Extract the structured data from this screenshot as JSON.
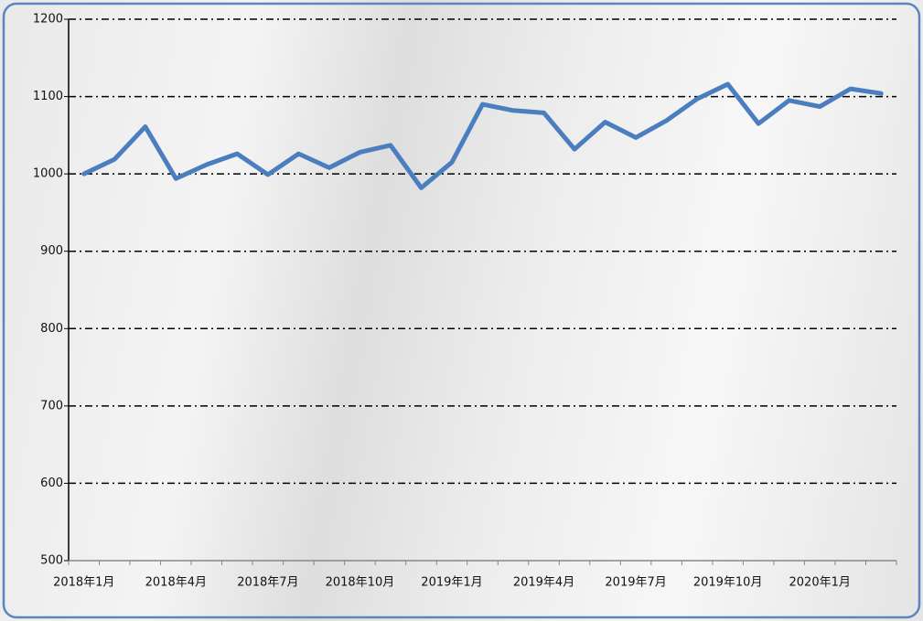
{
  "chart_data": {
    "type": "line",
    "categories": [
      "2018年1月",
      null,
      null,
      "2018年4月",
      null,
      null,
      "2018年7月",
      null,
      null,
      "2018年10月",
      null,
      null,
      "2019年1月",
      null,
      null,
      "2019年4月",
      null,
      null,
      "2019年7月",
      null,
      null,
      "2019年10月",
      null,
      null,
      "2020年1月",
      null,
      null
    ],
    "series": [
      {
        "color": "#4a7ebf",
        "values": [
          1000,
          1019,
          1061,
          994,
          1012,
          1026,
          999,
          1026,
          1008,
          1028,
          1037,
          982,
          1015,
          1090,
          1082,
          1079,
          1032,
          1067,
          1047,
          1069,
          1097,
          1116,
          1065,
          1095,
          1087,
          1110,
          1104
        ]
      }
    ],
    "ylim": [
      500,
      1200
    ],
    "yticks": [
      500,
      600,
      700,
      800,
      900,
      1000,
      1100,
      1200
    ],
    "grid": true
  }
}
